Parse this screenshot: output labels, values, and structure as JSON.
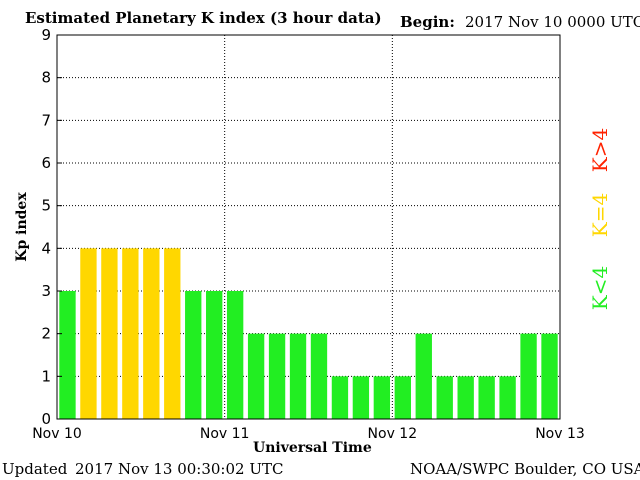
{
  "header": {
    "title": "Estimated Planetary K index (3 hour data)",
    "begin_label": "Begin:",
    "begin_value": "2017 Nov 10 0000 UTC"
  },
  "footer": {
    "updated_label": "Updated",
    "updated_value": "2017 Nov 13 00:30:02 UTC",
    "source": "NOAA/SWPC Boulder, CO USA"
  },
  "legend": {
    "high": "K>4",
    "equal": "K=4",
    "low": "K<4"
  },
  "colors": {
    "low": "#22ee22",
    "equal": "#ffd700",
    "high": "#ff2200",
    "grid": "#000000"
  },
  "chart_data": {
    "type": "bar",
    "xlabel": "Universal Time",
    "ylabel": "Kp index",
    "ylim": [
      0,
      9
    ],
    "yticks": [
      0,
      1,
      2,
      3,
      4,
      5,
      6,
      7,
      8,
      9
    ],
    "xtick_labels": [
      "Nov 10",
      "Nov 11",
      "Nov 12",
      "Nov 13"
    ],
    "grid": true,
    "legend_position": "right",
    "interval_hours": 3,
    "values": [
      3,
      4,
      4,
      4,
      4,
      4,
      3,
      3,
      3,
      2,
      2,
      2,
      2,
      1,
      1,
      1,
      1,
      2,
      1,
      1,
      1,
      1,
      2,
      2
    ]
  }
}
